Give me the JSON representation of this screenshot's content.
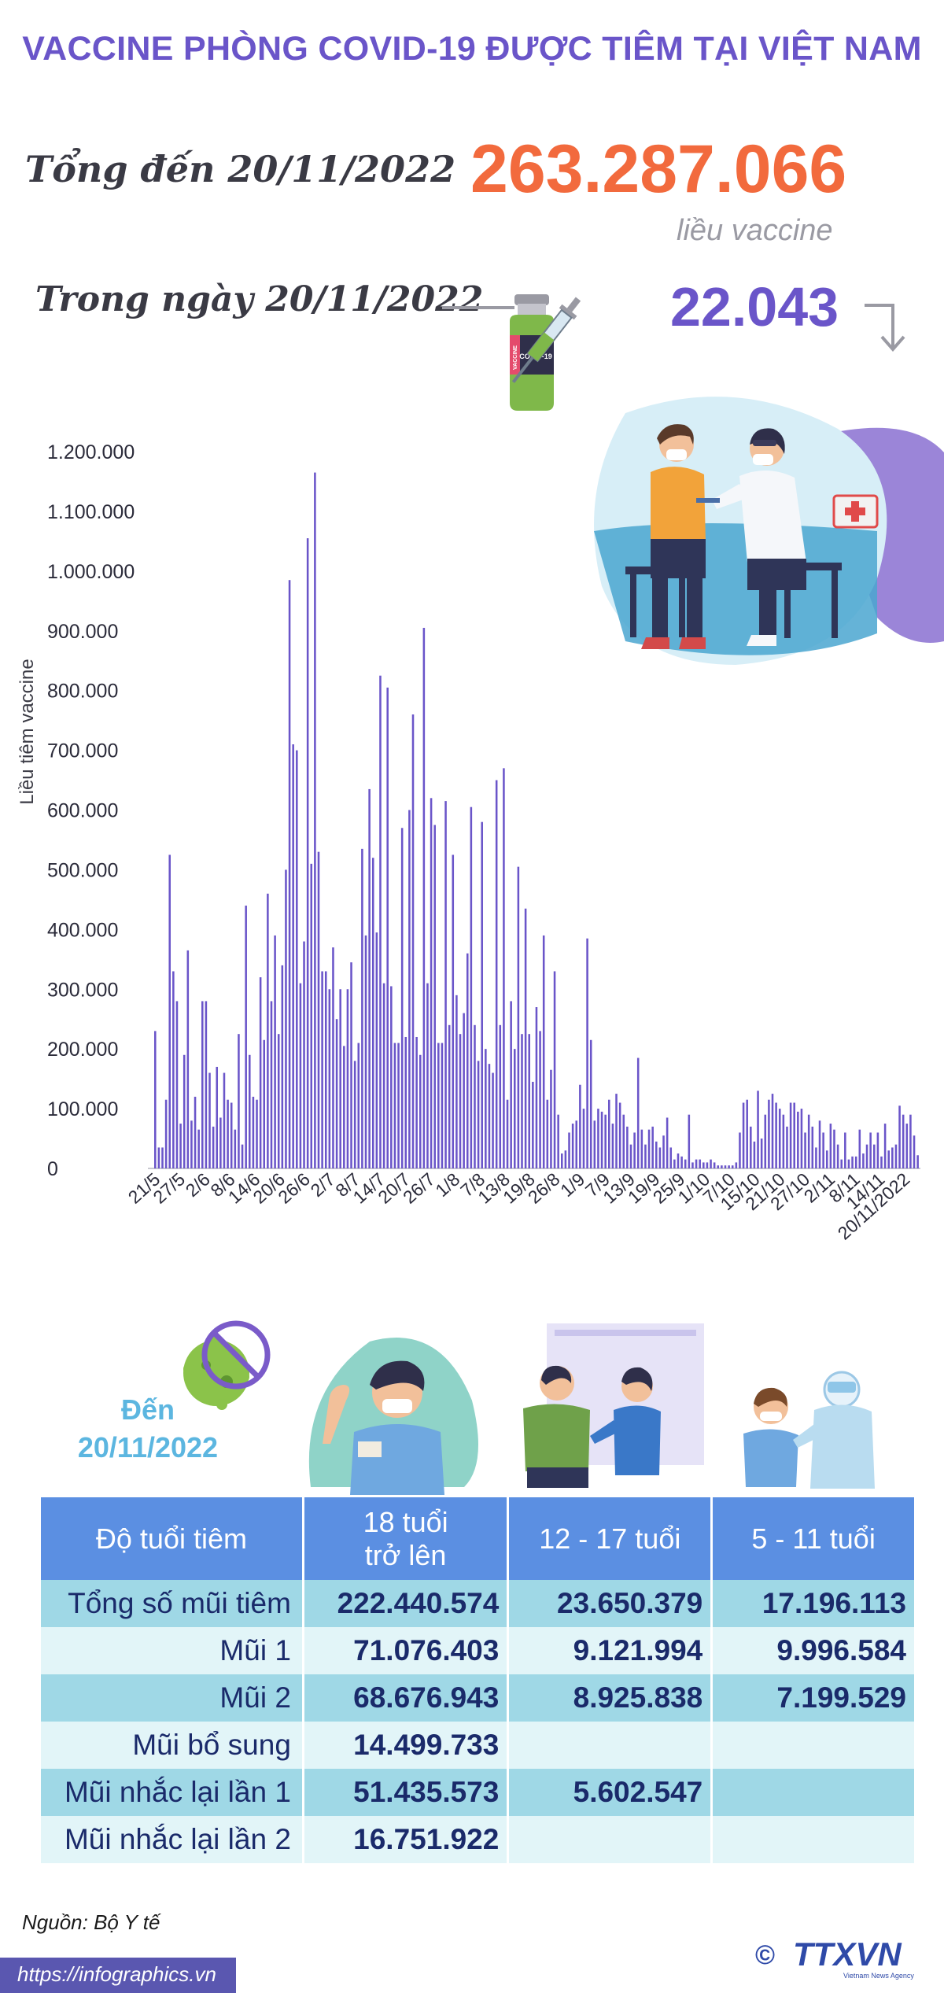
{
  "header": {
    "title": "VACCINE PHÒNG COVID-19 ĐƯỢC TIÊM TẠI VIỆT NAM",
    "total_label": "Tổng đến 20/11/2022",
    "total_value": "263.287.066",
    "total_unit": "liều vaccine",
    "day_label": "Trong ngày 20/11/2022",
    "day_value": "22.043",
    "vial_text": "COVID-19",
    "vial_side_text": "VACCINE"
  },
  "colors": {
    "title": "#6a55c9",
    "total": "#f26a3d",
    "bars": "#6a55c9",
    "table_header": "#5b8fe2",
    "row_dark": "#9fd8e6",
    "row_light": "#e2f5f8"
  },
  "chart_data": {
    "type": "bar",
    "ylabel": "Liều tiêm vaccine",
    "ylim": [
      0,
      1200000
    ],
    "y_ticks": [
      0,
      100000,
      200000,
      300000,
      400000,
      500000,
      600000,
      700000,
      800000,
      900000,
      1000000,
      1100000,
      1200000
    ],
    "y_tick_labels": [
      "0",
      "100.000",
      "200.000",
      "300.000",
      "400.000",
      "500.000",
      "600.000",
      "700.000",
      "800.000",
      "900.000",
      "1.000.000",
      "1.100.000",
      "1.200.000"
    ],
    "x_tick_labels": [
      "21/5",
      "27/5",
      "2/6",
      "8/6",
      "14/6",
      "20/6",
      "26/6",
      "2/7",
      "8/7",
      "14/7",
      "20/7",
      "26/7",
      "1/8",
      "7/8",
      "13/8",
      "19/8",
      "26/8",
      "1/9",
      "7/9",
      "13/9",
      "19/9",
      "25/9",
      "1/10",
      "7/10",
      "15/10",
      "21/10",
      "27/10",
      "2/11",
      "8/11",
      "14/11",
      "20/11/2022"
    ],
    "values": [
      230000,
      35000,
      35000,
      115000,
      525000,
      330000,
      280000,
      75000,
      190000,
      365000,
      80000,
      120000,
      65000,
      280000,
      280000,
      160000,
      70000,
      170000,
      85000,
      160000,
      115000,
      110000,
      65000,
      225000,
      40000,
      440000,
      190000,
      120000,
      115000,
      320000,
      215000,
      460000,
      280000,
      390000,
      225000,
      340000,
      500000,
      985000,
      710000,
      700000,
      310000,
      380000,
      1055000,
      510000,
      1165000,
      530000,
      330000,
      330000,
      300000,
      370000,
      250000,
      300000,
      205000,
      300000,
      345000,
      180000,
      210000,
      535000,
      390000,
      635000,
      520000,
      395000,
      825000,
      310000,
      805000,
      305000,
      210000,
      210000,
      570000,
      220000,
      600000,
      760000,
      220000,
      190000,
      905000,
      310000,
      620000,
      575000,
      210000,
      210000,
      615000,
      240000,
      525000,
      290000,
      225000,
      260000,
      360000,
      605000,
      240000,
      180000,
      580000,
      200000,
      175000,
      160000,
      650000,
      240000,
      670000,
      115000,
      280000,
      200000,
      505000,
      225000,
      435000,
      225000,
      145000,
      270000,
      230000,
      390000,
      115000,
      165000,
      330000,
      90000,
      25000,
      30000,
      60000,
      75000,
      80000,
      140000,
      100000,
      385000,
      215000,
      80000,
      100000,
      95000,
      90000,
      115000,
      75000,
      125000,
      110000,
      90000,
      70000,
      40000,
      60000,
      185000,
      65000,
      40000,
      65000,
      70000,
      45000,
      35000,
      55000,
      85000,
      35000,
      15000,
      25000,
      20000,
      15000,
      90000,
      10000,
      15000,
      15000,
      10000,
      10000,
      15000,
      10000,
      5000,
      5000,
      5000,
      5000,
      5000,
      10000,
      60000,
      110000,
      115000,
      70000,
      45000,
      130000,
      50000,
      90000,
      115000,
      125000,
      110000,
      100000,
      90000,
      70000,
      110000,
      110000,
      95000,
      100000,
      60000,
      90000,
      70000,
      35000,
      80000,
      60000,
      30000,
      75000,
      65000,
      40000,
      15000,
      60000,
      15000,
      20000,
      20000,
      65000,
      25000,
      40000,
      60000,
      40000,
      60000,
      20000,
      75000,
      30000,
      35000,
      40000,
      105000,
      90000,
      75000,
      90000,
      55000,
      22043
    ]
  },
  "summary": {
    "as_of_line1": "Đến",
    "as_of_line2": "20/11/2022"
  },
  "table": {
    "headers": [
      {
        "line1": "Độ tuổi tiêm",
        "line2": ""
      },
      {
        "line1": "18 tuổi",
        "line2": "trở lên"
      },
      {
        "line1": "12 - 17 tuổi",
        "line2": ""
      },
      {
        "line1": "5 - 11 tuổi",
        "line2": ""
      }
    ],
    "rows": [
      {
        "label": "Tổng số mũi tiêm",
        "adult": "222.440.574",
        "teen": "23.650.379",
        "child": "17.196.113"
      },
      {
        "label": "Mũi 1",
        "adult": "71.076.403",
        "teen": "9.121.994",
        "child": "9.996.584"
      },
      {
        "label": "Mũi 2",
        "adult": "68.676.943",
        "teen": "8.925.838",
        "child": "7.199.529"
      },
      {
        "label": "Mũi bổ sung",
        "adult": "14.499.733",
        "teen": "",
        "child": ""
      },
      {
        "label": "Mũi nhắc lại lần 1",
        "adult": "51.435.573",
        "teen": "5.602.547",
        "child": ""
      },
      {
        "label": "Mũi nhắc lại lần 2",
        "adult": "16.751.922",
        "teen": "",
        "child": ""
      }
    ]
  },
  "footer": {
    "source": "Nguồn: Bộ Y tế",
    "url": "https://infographics.vn",
    "logo_text": "TTXVN",
    "logo_sub": "Vietnam News Agency",
    "copyright": "©"
  }
}
